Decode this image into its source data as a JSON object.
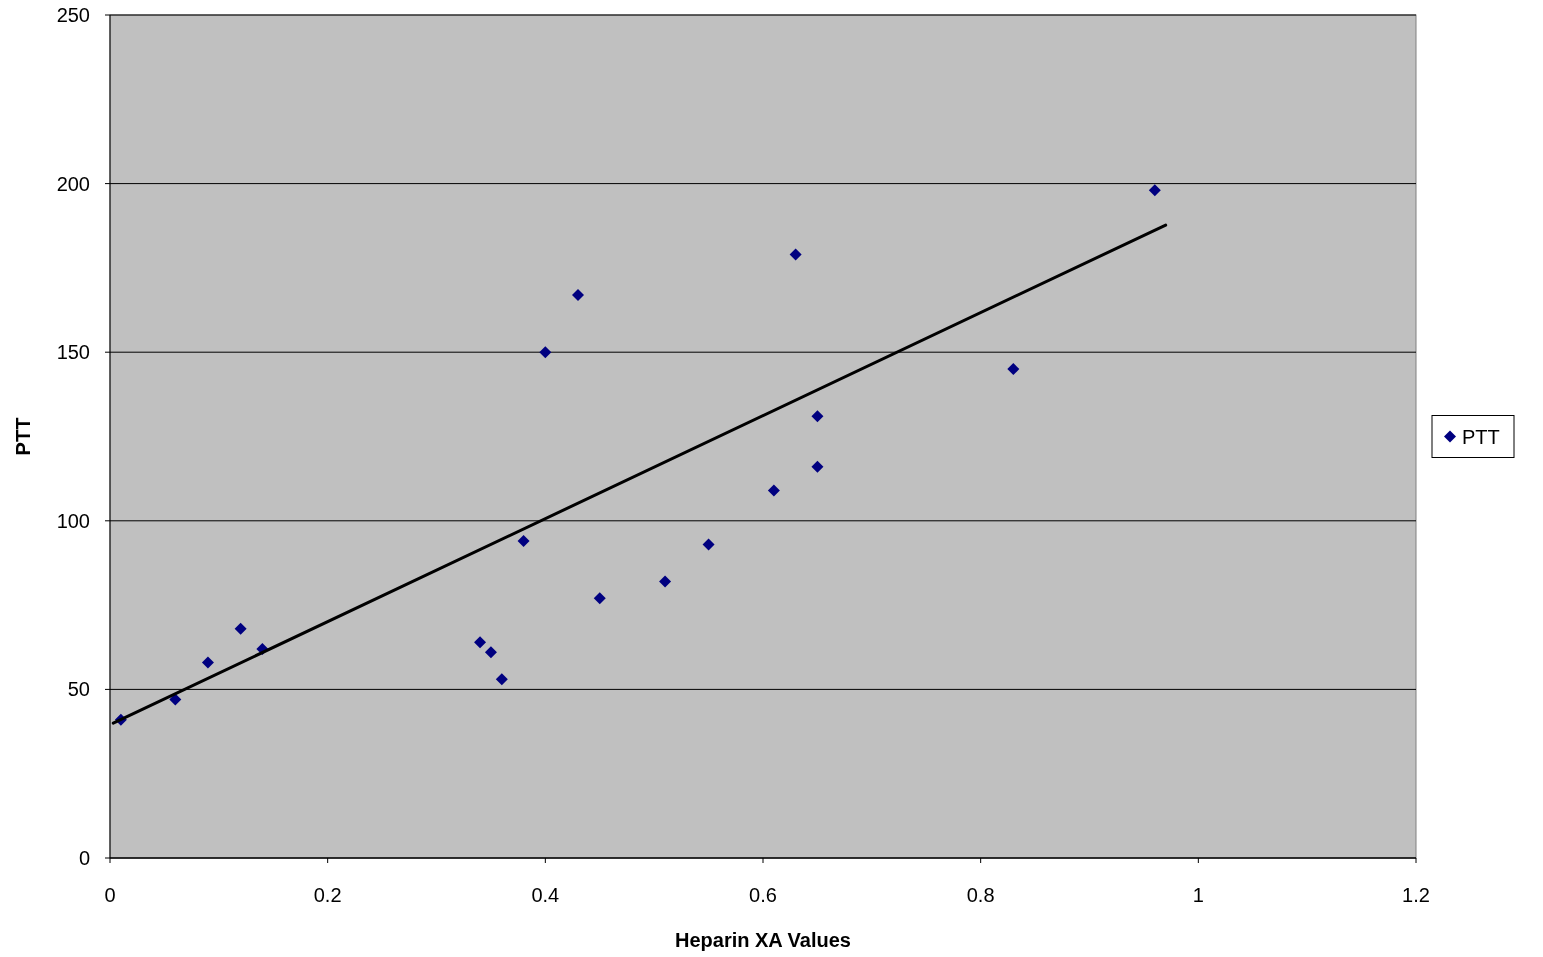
{
  "chart_data": {
    "type": "scatter",
    "xlabel": "Heparin XA Values",
    "ylabel": "PTT",
    "xlim": [
      0,
      1.2
    ],
    "xticks": [
      0,
      0.2,
      0.4,
      0.6,
      0.8,
      1,
      1.2
    ],
    "ylim": [
      0,
      250
    ],
    "yticks": [
      0,
      50,
      100,
      150,
      200,
      250
    ],
    "grid": "y",
    "legend": "right",
    "series": [
      {
        "name": "PTT",
        "marker": "diamond",
        "color": "#000080",
        "x": [
          0.01,
          0.06,
          0.09,
          0.12,
          0.14,
          0.34,
          0.35,
          0.36,
          0.38,
          0.4,
          0.43,
          0.45,
          0.51,
          0.55,
          0.61,
          0.63,
          0.65,
          0.65,
          0.83,
          0.96
        ],
        "values": [
          41,
          47,
          58,
          68,
          62,
          64,
          61,
          53,
          94,
          150,
          167,
          77,
          82,
          93,
          109,
          179,
          131,
          116,
          145,
          198
        ]
      },
      {
        "type": "line",
        "color": "#000000",
        "line_style": "solid",
        "x": [
          0.003,
          0.97
        ],
        "values": [
          40,
          187.7
        ]
      }
    ]
  }
}
